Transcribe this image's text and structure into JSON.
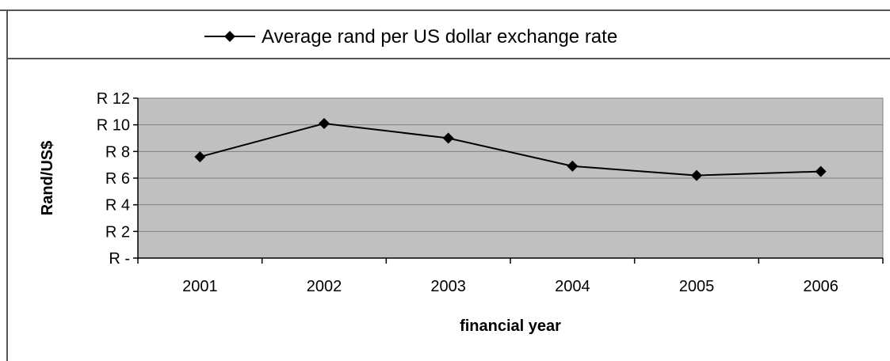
{
  "chart_data": {
    "type": "line",
    "title": "",
    "xlabel": "financial year",
    "ylabel": "Rand/US$",
    "categories": [
      "2001",
      "2002",
      "2003",
      "2004",
      "2005",
      "2006"
    ],
    "series": [
      {
        "name": "Average rand per US dollar exchange rate",
        "values": [
          7.6,
          10.1,
          9.0,
          6.9,
          6.2,
          6.5
        ],
        "color": "#000000",
        "marker": "diamond"
      }
    ],
    "ylim": [
      0,
      12
    ],
    "yticks": [
      0,
      2,
      4,
      6,
      8,
      10,
      12
    ],
    "ytick_labels": [
      "R -",
      "R 2",
      "R 4",
      "R 6",
      "R 8",
      "R 10",
      "R 12"
    ],
    "grid": true,
    "plot_background": "#c0c0c0",
    "legend_position": "top"
  }
}
